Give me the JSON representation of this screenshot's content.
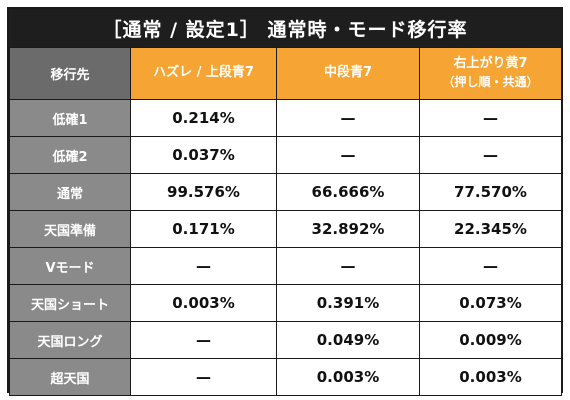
{
  "title": "［通常 / 設定1］ 通常時・モード移行率",
  "header": {
    "label": "移行先",
    "columns": [
      {
        "label": "ハズレ / 上段青7",
        "sub": ""
      },
      {
        "label": "中段青7",
        "sub": ""
      },
      {
        "label": "右上がり黄7",
        "sub": "（押し順・共通）"
      }
    ]
  },
  "rows": [
    {
      "label": "低確1",
      "values": [
        "0.214%",
        "—",
        "—"
      ]
    },
    {
      "label": "低確2",
      "values": [
        "0.037%",
        "—",
        "—"
      ]
    },
    {
      "label": "通常",
      "values": [
        "99.576%",
        "66.666%",
        "77.570%"
      ]
    },
    {
      "label": "天国準備",
      "values": [
        "0.171%",
        "32.892%",
        "22.345%"
      ]
    },
    {
      "label": "Vモード",
      "values": [
        "—",
        "—",
        "—"
      ]
    },
    {
      "label": "天国ショート",
      "values": [
        "0.003%",
        "0.391%",
        "0.073%"
      ]
    },
    {
      "label": "天国ロング",
      "values": [
        "—",
        "0.049%",
        "0.009%"
      ]
    },
    {
      "label": "超天国",
      "values": [
        "—",
        "0.003%",
        "0.003%"
      ]
    }
  ],
  "colors": {
    "title_bg": "#1e1e1e",
    "header_accent": "#f6a433",
    "label_header_bg": "#6b6b6b",
    "row_label_bg": "#8a8a8a"
  }
}
